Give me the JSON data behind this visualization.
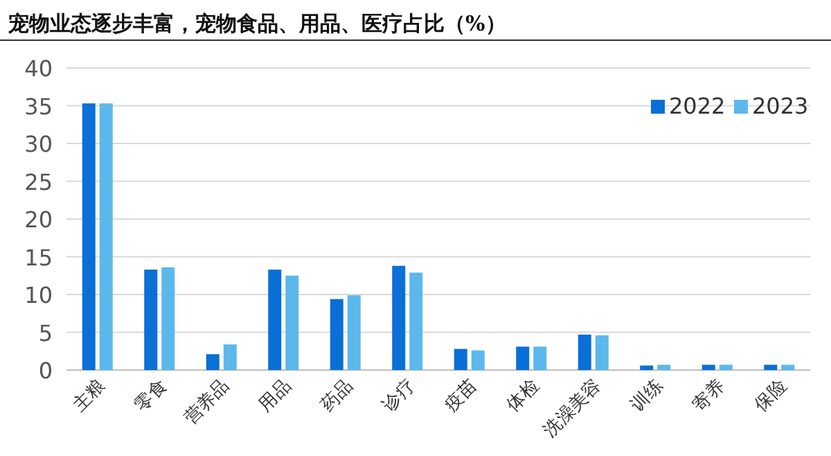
{
  "chart_data": {
    "type": "bar",
    "title": "宠物业态逐步丰富，宠物食品、用品、医疗占比（%）",
    "categories": [
      "主粮",
      "零食",
      "营养品",
      "用品",
      "药品",
      "诊疗",
      "疫苗",
      "体检",
      "洗澡美容",
      "训练",
      "寄养",
      "保险"
    ],
    "series": [
      {
        "name": "2022",
        "color": "#0a6fd6",
        "values": [
          35.3,
          13.3,
          2.1,
          13.3,
          9.4,
          13.8,
          2.8,
          3.1,
          4.7,
          0.6,
          0.7,
          0.7
        ]
      },
      {
        "name": "2023",
        "color": "#5cb8ec",
        "values": [
          35.3,
          13.6,
          3.4,
          12.5,
          9.9,
          12.9,
          2.6,
          3.1,
          4.6,
          0.7,
          0.7,
          0.7
        ]
      }
    ],
    "ylim": [
      0,
      40
    ],
    "yticks": [
      0,
      5,
      10,
      15,
      20,
      25,
      30,
      35,
      40
    ],
    "grid": "y",
    "legend": "top right"
  }
}
